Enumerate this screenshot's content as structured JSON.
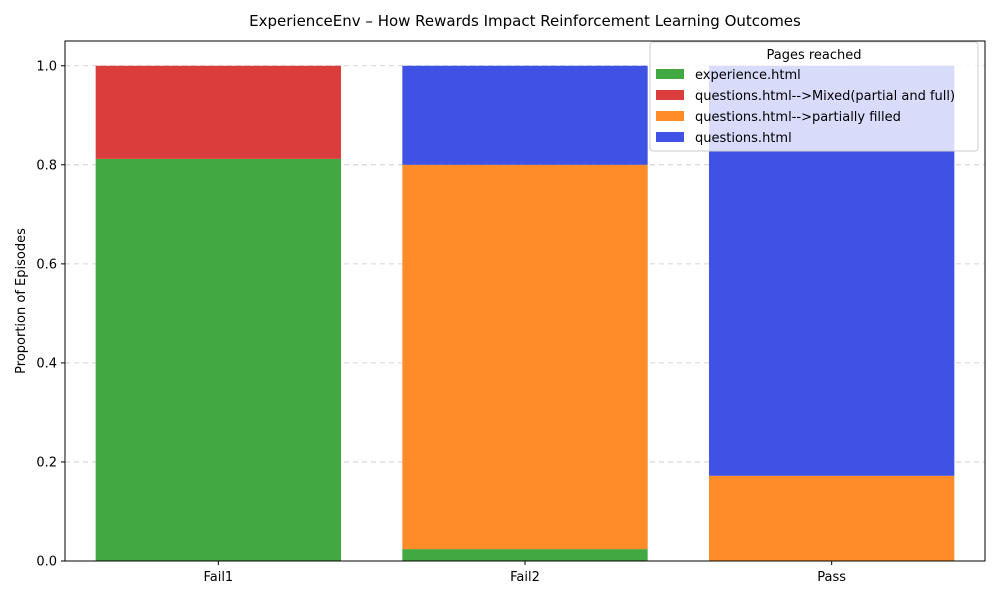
{
  "chart_data": {
    "type": "bar",
    "stacked": true,
    "title": "ExperienceEnv – How Rewards Impact Reinforcement Learning Outcomes",
    "xlabel": "",
    "ylabel": "Proportion of Episodes",
    "categories": [
      "Fail1",
      "Fail2",
      "Pass"
    ],
    "ylim": [
      0,
      1.05
    ],
    "yticks": [
      "0.0",
      "0.2",
      "0.4",
      "0.6",
      "0.8",
      "1.0"
    ],
    "grid": "horizontal dashed",
    "legend": {
      "title": "Pages reached",
      "placement": "top-right"
    },
    "series": [
      {
        "name": "experience.html",
        "color": "#42a942",
        "values": [
          0.812,
          0.024,
          0.0
        ]
      },
      {
        "name": "questions.html-->Mixed(partial and full)",
        "color": "#db3c3c",
        "values": [
          0.188,
          0.0,
          0.0
        ]
      },
      {
        "name": "questions.html-->partially filled",
        "color": "#ff8c28",
        "values": [
          0.0,
          0.776,
          0.172
        ]
      },
      {
        "name": "questions.html",
        "color": "#3f52e3",
        "values": [
          0.0,
          0.2,
          0.828
        ]
      }
    ]
  }
}
